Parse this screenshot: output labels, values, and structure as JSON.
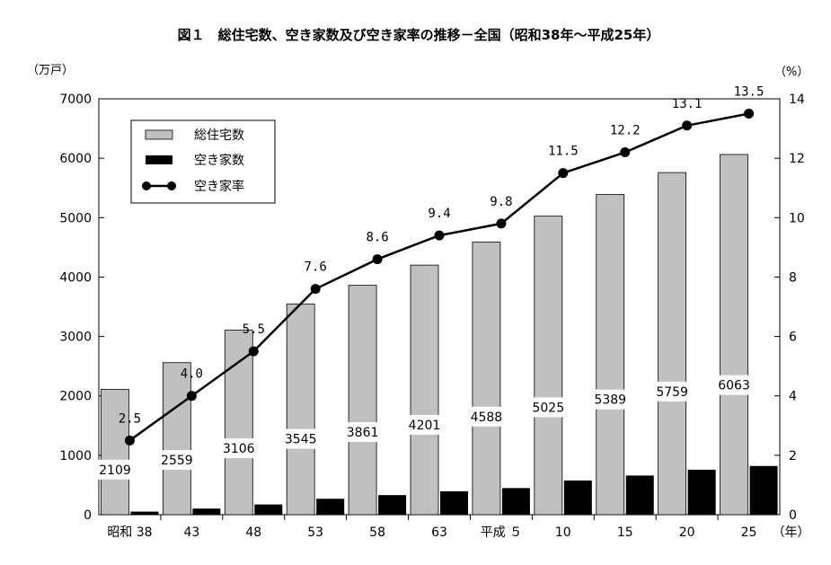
{
  "chart_data": {
    "type": "bar",
    "title": "図１　総住宅数、空き家数及び空き家率の推移－全国（昭和38年～平成25年）",
    "y_left_unit": "（万戸）",
    "y_right_unit": "（%）",
    "x_unit": "（年）",
    "categories": [
      "昭和 38",
      "43",
      "48",
      "53",
      "58",
      "63",
      "平成 ５",
      "10",
      "15",
      "20",
      "25"
    ],
    "ylim_left": [
      0,
      7000
    ],
    "yticks_left": [
      0,
      1000,
      2000,
      3000,
      4000,
      5000,
      6000,
      7000
    ],
    "ylim_right": [
      0,
      14
    ],
    "yticks_right": [
      0,
      2,
      4,
      6,
      8,
      10,
      12,
      14
    ],
    "grid": false,
    "legend_position": "top-left",
    "series": [
      {
        "name": "総住宅数",
        "kind": "bar",
        "axis": "left",
        "color": "#c0c0c0",
        "values": [
          2109,
          2559,
          3106,
          3545,
          3861,
          4201,
          4588,
          5025,
          5389,
          5759,
          6063
        ],
        "labels": [
          "2109",
          "2559",
          "3106",
          "3545",
          "3861",
          "4201",
          "4588",
          "5025",
          "5389",
          "5759",
          "6063"
        ]
      },
      {
        "name": "空き家数",
        "kind": "bar",
        "axis": "left",
        "color": "#000000",
        "values": [
          52,
          103,
          172,
          268,
          330,
          394,
          448,
          576,
          659,
          757,
          820
        ]
      },
      {
        "name": "空き家率",
        "kind": "line",
        "axis": "right",
        "color": "#000000",
        "values": [
          2.5,
          4.0,
          5.5,
          7.6,
          8.6,
          9.4,
          9.8,
          11.5,
          12.2,
          13.1,
          13.5
        ],
        "labels": [
          "2.5",
          "4.0",
          "5.5",
          "7.6",
          "8.6",
          "9.4",
          "9.8",
          "11.5",
          "12.2",
          "13.1",
          "13.5"
        ]
      }
    ]
  }
}
